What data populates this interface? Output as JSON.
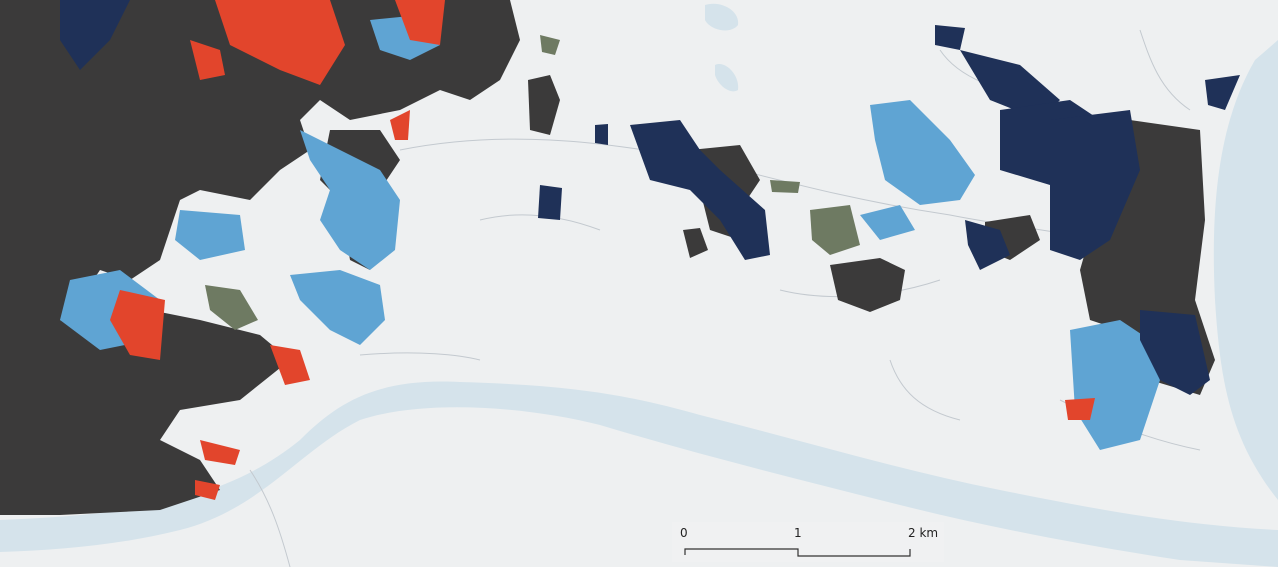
{
  "map": {
    "colors": {
      "land": "#eef0f1",
      "water": "#d3e2ea",
      "dark_overlay": "#3a3a3a",
      "urban_light_blue": "#5ea6d6",
      "urban_dark_blue": "#1c2f55",
      "urban_red": "#e2472e",
      "roads": "#c8cdd2"
    }
  },
  "scale_bar": {
    "labels": [
      "0",
      "1",
      "2 km"
    ]
  }
}
